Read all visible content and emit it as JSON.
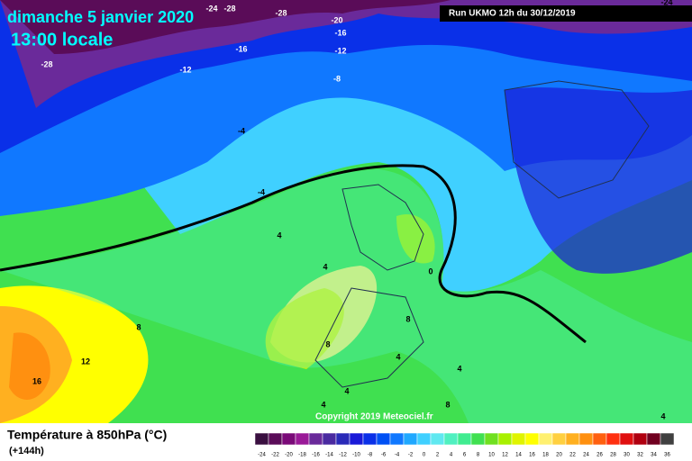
{
  "header": {
    "date": "dimanche 5 janvier 2020",
    "time": "13:00 locale",
    "run": "Run UKMO 12h du 30/12/2019"
  },
  "contour_labels": [
    -24,
    -28,
    -28,
    -20,
    -16,
    -16,
    -12,
    -12,
    -28,
    -8,
    -4,
    -4,
    4,
    4,
    0,
    8,
    8,
    8,
    12,
    16,
    4,
    4,
    4,
    8,
    4,
    4,
    -24
  ],
  "footer": {
    "title": "Température à 850hPa (°C)",
    "lead": "(+144h)",
    "copyright": "Copyright 2019 Meteociel.fr"
  },
  "legend": {
    "labels": [
      -24,
      -22,
      -20,
      -18,
      -16,
      -14,
      -12,
      -10,
      -8,
      -6,
      -4,
      -2,
      0,
      2,
      4,
      6,
      8,
      10,
      12,
      14,
      16,
      18,
      20,
      22,
      24,
      26,
      28,
      30,
      32,
      34,
      36
    ],
    "colors": [
      "#3a1040",
      "#5a0c58",
      "#7a0a78",
      "#9a1a98",
      "#6a2a9a",
      "#4a2aa0",
      "#2a2ab8",
      "#1a1ad8",
      "#0a30e8",
      "#0050f4",
      "#1078ff",
      "#20a8ff",
      "#40d0ff",
      "#60e8f0",
      "#50f0c0",
      "#40ec90",
      "#40e050",
      "#70e020",
      "#a8f000",
      "#e0f400",
      "#ffff00",
      "#fff070",
      "#ffd040",
      "#ffb020",
      "#ff9010",
      "#ff6010",
      "#ff3010",
      "#e01010",
      "#b00010",
      "#700020",
      "#404040"
    ]
  }
}
